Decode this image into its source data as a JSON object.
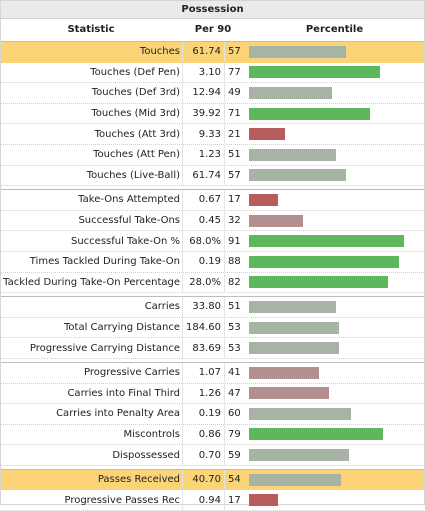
{
  "title": "Possession",
  "headers": {
    "statistic": "Statistic",
    "per90": "Per 90",
    "percentile": "Percentile"
  },
  "colors": {
    "high": "#5db85d",
    "mid": "#a7b3a4",
    "lowmid": "#b48f8f",
    "low": "#b75c5c",
    "highlight": "#fcd478"
  },
  "groups": [
    [
      {
        "stat": "Touches",
        "per90": "61.74",
        "pct": "57",
        "highlight": true,
        "color": "mid"
      },
      {
        "stat": "Touches (Def Pen)",
        "per90": "3.10",
        "pct": "77",
        "color": "high"
      },
      {
        "stat": "Touches (Def 3rd)",
        "per90": "12.94",
        "pct": "49",
        "color": "mid"
      },
      {
        "stat": "Touches (Mid 3rd)",
        "per90": "39.92",
        "pct": "71",
        "color": "high"
      },
      {
        "stat": "Touches (Att 3rd)",
        "per90": "9.33",
        "pct": "21",
        "color": "low"
      },
      {
        "stat": "Touches (Att Pen)",
        "per90": "1.23",
        "pct": "51",
        "color": "mid"
      },
      {
        "stat": "Touches (Live-Ball)",
        "per90": "61.74",
        "pct": "57",
        "color": "mid"
      }
    ],
    [
      {
        "stat": "Take-Ons Attempted",
        "per90": "0.67",
        "pct": "17",
        "color": "low"
      },
      {
        "stat": "Successful Take-Ons",
        "per90": "0.45",
        "pct": "32",
        "color": "lowmid"
      },
      {
        "stat": "Successful Take-On %",
        "per90": "68.0%",
        "pct": "91",
        "color": "high"
      },
      {
        "stat": "Times Tackled During Take-On",
        "per90": "0.19",
        "pct": "88",
        "color": "high"
      },
      {
        "stat": "Tackled During Take-On Percentage",
        "per90": "28.0%",
        "pct": "82",
        "color": "high"
      }
    ],
    [
      {
        "stat": "Carries",
        "per90": "33.80",
        "pct": "51",
        "color": "mid"
      },
      {
        "stat": "Total Carrying Distance",
        "per90": "184.60",
        "pct": "53",
        "color": "mid"
      },
      {
        "stat": "Progressive Carrying Distance",
        "per90": "83.69",
        "pct": "53",
        "color": "mid"
      }
    ],
    [
      {
        "stat": "Progressive Carries",
        "per90": "1.07",
        "pct": "41",
        "color": "lowmid"
      },
      {
        "stat": "Carries into Final Third",
        "per90": "1.26",
        "pct": "47",
        "color": "lowmid"
      },
      {
        "stat": "Carries into Penalty Area",
        "per90": "0.19",
        "pct": "60",
        "color": "mid"
      },
      {
        "stat": "Miscontrols",
        "per90": "0.86",
        "pct": "79",
        "color": "high"
      },
      {
        "stat": "Dispossessed",
        "per90": "0.70",
        "pct": "59",
        "color": "mid"
      }
    ],
    [
      {
        "stat": "Passes Received",
        "per90": "40.70",
        "pct": "54",
        "highlight": true,
        "color": "mid"
      },
      {
        "stat": "Progressive Passes Rec",
        "per90": "0.94",
        "pct": "17",
        "color": "low"
      }
    ]
  ]
}
